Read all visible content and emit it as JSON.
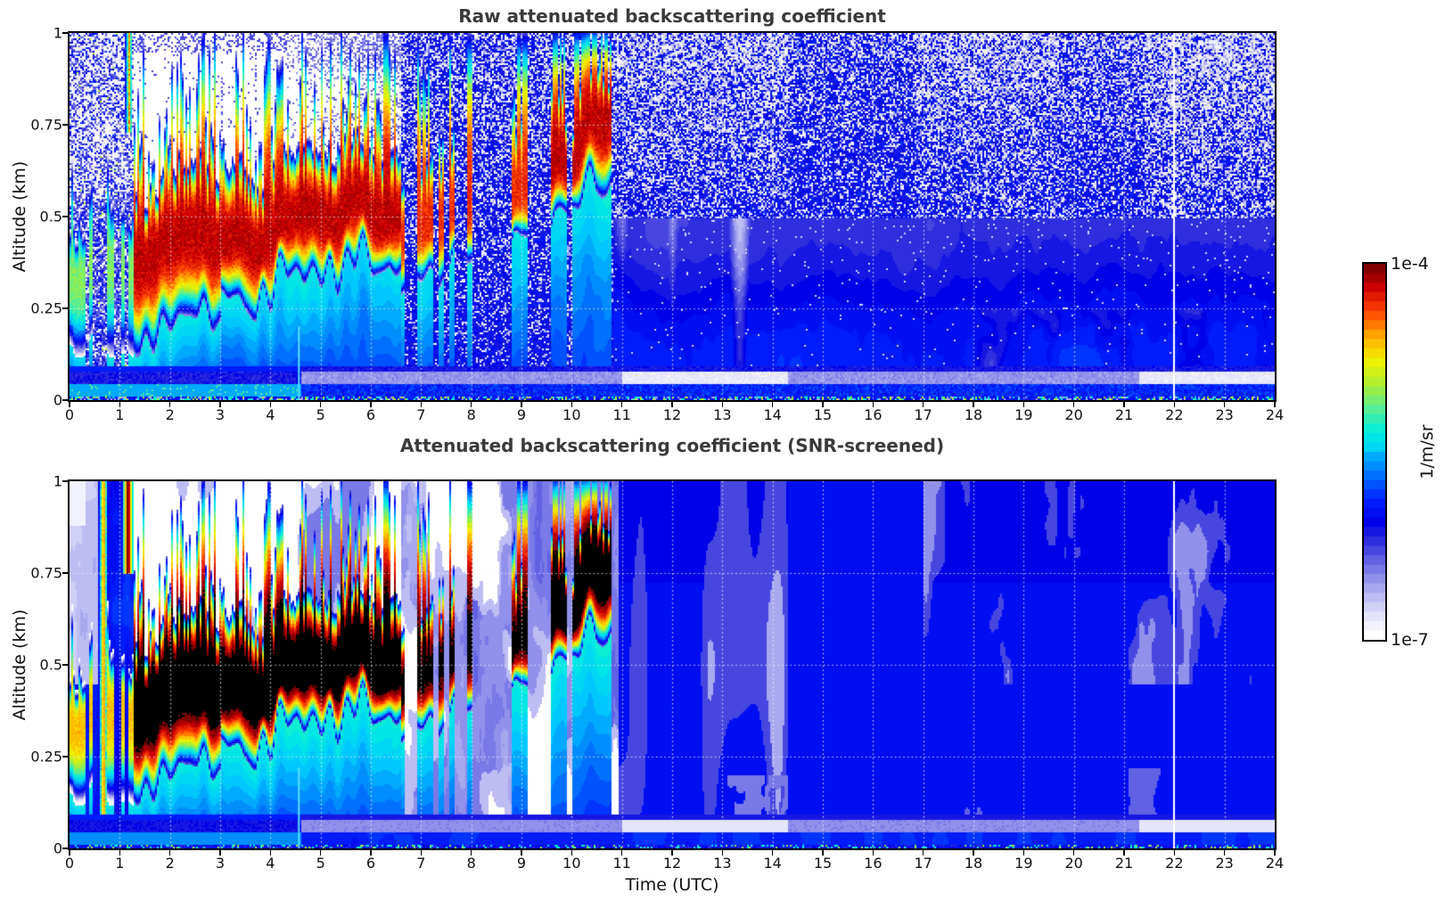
{
  "panels": [
    {
      "id": "raw",
      "title": "Raw attenuated backscattering coefficient"
    },
    {
      "id": "screened",
      "title": "Attenuated backscattering coefficient (SNR-screened)"
    }
  ],
  "axes": {
    "x": {
      "label": "Time (UTC)",
      "range": [
        0,
        24
      ],
      "tick_step": 1,
      "tick_labels": [
        "0",
        "1",
        "2",
        "3",
        "4",
        "5",
        "6",
        "7",
        "8",
        "9",
        "10",
        "11",
        "12",
        "13",
        "14",
        "15",
        "16",
        "17",
        "18",
        "19",
        "20",
        "21",
        "22",
        "23",
        "24"
      ]
    },
    "y": {
      "label": "Altitude (km)",
      "range": [
        0,
        1
      ],
      "ticks": [
        {
          "v": 0,
          "label": "0"
        },
        {
          "v": 0.25,
          "label": "0.25"
        },
        {
          "v": 0.5,
          "label": "0.5"
        },
        {
          "v": 0.75,
          "label": "0.75"
        },
        {
          "v": 1,
          "label": "1"
        }
      ]
    }
  },
  "colorbar": {
    "max_label": "1e-4",
    "min_label": "1e-7",
    "unit_label": "1/m/sr",
    "scale": "log",
    "min": 1e-07,
    "max": 0.0001,
    "steps": 40,
    "colormap_stops": [
      [
        0.0,
        "#ffffff"
      ],
      [
        0.045,
        "#e8e8fb"
      ],
      [
        0.09,
        "#c6c6f4"
      ],
      [
        0.14,
        "#9b9bed"
      ],
      [
        0.19,
        "#6b6be5"
      ],
      [
        0.245,
        "#3333dd"
      ],
      [
        0.3,
        "#0000e8"
      ],
      [
        0.36,
        "#0022ff"
      ],
      [
        0.43,
        "#0077ff"
      ],
      [
        0.5,
        "#00c8ff"
      ],
      [
        0.565,
        "#00eedd"
      ],
      [
        0.625,
        "#55ee99"
      ],
      [
        0.69,
        "#aaee33"
      ],
      [
        0.755,
        "#f2f200"
      ],
      [
        0.82,
        "#ffaa00"
      ],
      [
        0.885,
        "#ff4400"
      ],
      [
        0.95,
        "#cc0000"
      ],
      [
        1.0,
        "#7f0000"
      ]
    ],
    "over_color": "#000000"
  },
  "grid": {
    "style": "dotted",
    "color": "rgba(245,245,252,0.85)",
    "x_lines_hours": [
      1,
      2,
      3,
      4,
      5,
      6,
      7,
      8,
      9,
      10,
      11,
      12,
      13,
      14,
      15,
      16,
      17,
      18,
      19,
      20,
      21,
      22,
      23
    ],
    "y_lines_km": [
      0.25,
      0.5,
      0.75
    ]
  },
  "chart_data": [
    {
      "type": "heatmap",
      "panel": "raw",
      "title": "Raw attenuated backscattering coefficient",
      "x": {
        "label": "Time (UTC)",
        "range": [
          0,
          24
        ],
        "unit": "hours"
      },
      "y": {
        "label": "Altitude (km)",
        "range": [
          0,
          1
        ]
      },
      "value": {
        "unit": "1/m/sr",
        "scale": "log10",
        "range": [
          1e-07,
          0.0001
        ]
      },
      "features": [
        {
          "name": "early-noisy-column",
          "t_range": [
            0,
            1.25
          ],
          "alt_range": [
            0,
            1
          ],
          "desc": "blue/white speckle noise full depth, sporadic red cells 0.22-0.52 km near t=0"
        },
        {
          "name": "descending-red-streak",
          "t": 1.17,
          "alt_range": [
            0.73,
            1.0
          ],
          "peak": "~5e-5"
        },
        {
          "name": "aerosol-boundary-layer",
          "t_range": [
            1.25,
            6.6
          ],
          "core_alt_km": [
            0.4,
            0.55
          ],
          "top_alt_km": [
            0.55,
            0.9
          ],
          "peak": "~1e-4 dark red, jagged spiky top"
        },
        {
          "name": "clear-white-region",
          "t_range": [
            1.3,
            6.5
          ],
          "alt_range": [
            0.6,
            1.0
          ],
          "desc": "no-signal white above layer"
        },
        {
          "name": "intermittent-plumes",
          "t_range": [
            6.6,
            9.35
          ],
          "alt_top_km": 0.75,
          "desc": "narrow red/orange vertical streaks"
        },
        {
          "name": "cloud-plumes",
          "t_range": [
            9.35,
            10.78
          ],
          "alt_top_km": 1.0,
          "desc": "strong red plumes reaching plot top"
        },
        {
          "name": "speckle-noise-background",
          "t_range": [
            6.6,
            24
          ],
          "desc": "white speckle probability increases with altitude; denser 10.8-14.3, 16.8-19.7 and after 21.4"
        },
        {
          "name": "surface-bright-band",
          "alt_range": [
            0,
            0.048
          ]
        },
        {
          "name": "elevated-light-band",
          "alt_range": [
            0.048,
            0.078
          ],
          "t_range": [
            4.6,
            24
          ],
          "desc": "pale lavender band, brightest 11-14.3 and after 21.3"
        },
        {
          "name": "bottom-speckle-row",
          "alt_range": [
            0,
            0.012
          ],
          "desc": "cyan/green ticks along surface"
        },
        {
          "name": "narrow-cyan-spike",
          "t": 4.55,
          "alt_range": [
            0,
            0.2
          ]
        },
        {
          "name": "data-gap-white-line",
          "t": 22
        }
      ]
    },
    {
      "type": "heatmap",
      "panel": "screened",
      "title": "Attenuated backscattering coefficient (SNR-screened)",
      "x": {
        "label": "Time (UTC)",
        "range": [
          0,
          24
        ],
        "unit": "hours"
      },
      "y": {
        "label": "Altitude (km)",
        "range": [
          0,
          1
        ]
      },
      "value": {
        "unit": "1/m/sr",
        "scale": "log10",
        "range": [
          1e-07,
          0.0001
        ]
      },
      "features": [
        {
          "name": "early-smooth-column",
          "t_range": [
            0,
            1.25
          ],
          "desc": "smooth blue with lavender wedge above 0.45 km before t=0.55; spiky plume t=0.5-0.8 to 1 km"
        },
        {
          "name": "descending-black-streak",
          "t": 1.15,
          "alt_range": [
            0.75,
            1.0
          ]
        },
        {
          "name": "aerosol-boundary-layer",
          "t_range": [
            1.25,
            6.6
          ],
          "core_alt_km": [
            0.4,
            0.55
          ],
          "desc": "saturated BLACK core (>1e-4) with red/yellow/cyan fringes, jagged top"
        },
        {
          "name": "clear-white-region",
          "t_range": [
            1.3,
            6.5
          ],
          "alt_range": [
            0.6,
            1.0
          ],
          "desc": "clean white with faint lavender columns"
        },
        {
          "name": "intermittent-plumes",
          "t_range": [
            6.6,
            9.35
          ],
          "alt_top_km": 0.85
        },
        {
          "name": "cloud-plumes",
          "t_range": [
            9.35,
            10.78
          ],
          "alt_top_km": 1.0,
          "desc": "black cores reaching top edge"
        },
        {
          "name": "light-virga-shafts",
          "t_range": [
            10.9,
            14.3
          ],
          "desc": "pale periwinkle vertical shafts down to 0.08 km"
        },
        {
          "name": "uniform-blue",
          "t_range": [
            14.3,
            17
          ],
          "desc": "nearly uniform medium blue"
        },
        {
          "name": "subtle-mottling",
          "t_range": [
            17,
            24
          ],
          "alt_range": [
            0.45,
            1.0
          ]
        },
        {
          "name": "surface-bright-band",
          "alt_range": [
            0,
            0.048
          ]
        },
        {
          "name": "elevated-light-band",
          "alt_range": [
            0.048,
            0.078
          ],
          "t_range": [
            4.6,
            24
          ],
          "desc": "brightest 11-14.3 and after 21.3"
        },
        {
          "name": "bottom-speckle-row",
          "alt_range": [
            0,
            0.012
          ]
        },
        {
          "name": "narrow-cyan-spike",
          "t": 4.55,
          "alt_range": [
            0,
            0.22
          ]
        },
        {
          "name": "data-gap-white-line",
          "t": 22
        }
      ]
    }
  ]
}
